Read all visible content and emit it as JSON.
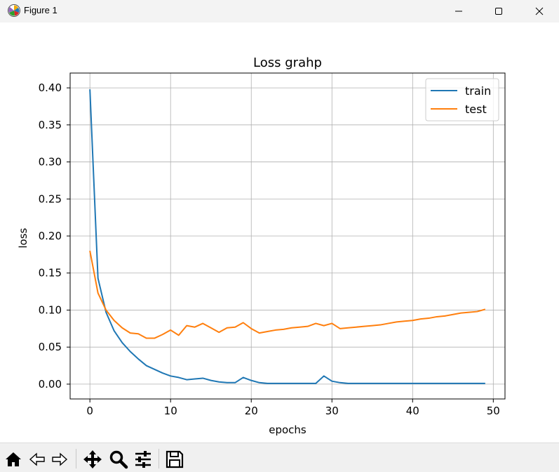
{
  "window": {
    "title": "Figure 1",
    "icons": [
      "matplotlib-logo-icon",
      "minimize-icon",
      "maximize-icon",
      "close-icon"
    ]
  },
  "toolbar": {
    "buttons": [
      "home-icon",
      "back-arrow-icon",
      "forward-arrow-icon",
      "pan-move-icon",
      "zoom-magnifier-icon",
      "configure-subplots-icon",
      "save-floppy-icon"
    ]
  },
  "colors": {
    "train": "#1f77b4",
    "test": "#ff7f0e",
    "grid": "#b0b0b0"
  },
  "chart_data": {
    "type": "line",
    "title": "Loss grahp",
    "xlabel": "epochs",
    "ylabel": "loss",
    "xlim": [
      -2.45,
      51.45
    ],
    "ylim": [
      -0.02,
      0.42
    ],
    "xticks": [
      "0",
      "10",
      "20",
      "30",
      "40",
      "50"
    ],
    "yticks": [
      "0.00",
      "0.05",
      "0.10",
      "0.15",
      "0.20",
      "0.25",
      "0.30",
      "0.35",
      "0.40"
    ],
    "grid": true,
    "legend_position": "upper right",
    "x": [
      0,
      1,
      2,
      3,
      4,
      5,
      6,
      7,
      8,
      9,
      10,
      11,
      12,
      13,
      14,
      15,
      16,
      17,
      18,
      19,
      20,
      21,
      22,
      23,
      24,
      25,
      26,
      27,
      28,
      29,
      30,
      31,
      32,
      33,
      34,
      35,
      36,
      37,
      38,
      39,
      40,
      41,
      42,
      43,
      44,
      45,
      46,
      47,
      48,
      49
    ],
    "series": [
      {
        "name": "train",
        "values": [
          0.398,
          0.143,
          0.097,
          0.072,
          0.056,
          0.044,
          0.034,
          0.025,
          0.02,
          0.015,
          0.011,
          0.009,
          0.006,
          0.007,
          0.008,
          0.005,
          0.003,
          0.002,
          0.002,
          0.009,
          0.005,
          0.002,
          0.001,
          0.001,
          0.001,
          0.001,
          0.001,
          0.001,
          0.001,
          0.011,
          0.004,
          0.002,
          0.001,
          0.001,
          0.001,
          0.001,
          0.001,
          0.001,
          0.001,
          0.001,
          0.001,
          0.001,
          0.001,
          0.001,
          0.001,
          0.001,
          0.001,
          0.001,
          0.001,
          0.001
        ]
      },
      {
        "name": "test",
        "values": [
          0.18,
          0.123,
          0.1,
          0.086,
          0.076,
          0.069,
          0.068,
          0.062,
          0.062,
          0.067,
          0.073,
          0.066,
          0.079,
          0.077,
          0.082,
          0.076,
          0.07,
          0.076,
          0.077,
          0.083,
          0.075,
          0.069,
          0.071,
          0.073,
          0.074,
          0.076,
          0.077,
          0.078,
          0.082,
          0.079,
          0.082,
          0.075,
          0.076,
          0.077,
          0.078,
          0.079,
          0.08,
          0.082,
          0.084,
          0.085,
          0.086,
          0.088,
          0.089,
          0.091,
          0.092,
          0.094,
          0.096,
          0.097,
          0.098,
          0.101
        ]
      }
    ]
  }
}
